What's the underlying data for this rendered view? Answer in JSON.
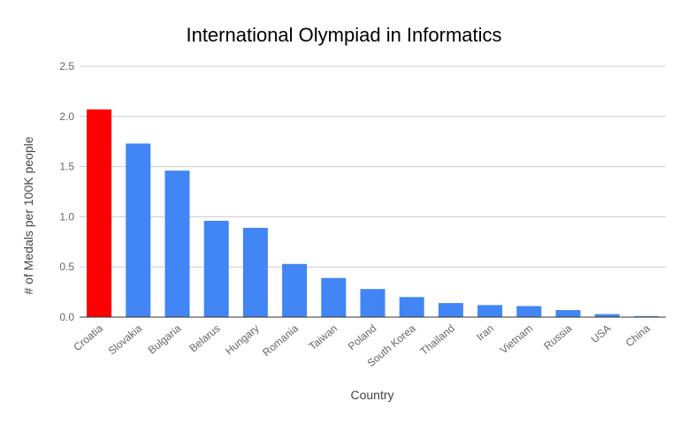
{
  "chart_data": {
    "type": "bar",
    "title": "International Olympiad in Informatics",
    "xlabel": "Country",
    "ylabel": "# of Medals per 100K people",
    "categories": [
      "Croatia",
      "Slovakia",
      "Bulgaria",
      "Belarus",
      "Hungary",
      "Romania",
      "Taiwan",
      "Poland",
      "South Korea",
      "Thailand",
      "Iran",
      "Vietnam",
      "Russia",
      "USA",
      "China"
    ],
    "values": [
      2.07,
      1.73,
      1.46,
      0.96,
      0.89,
      0.53,
      0.39,
      0.28,
      0.2,
      0.14,
      0.12,
      0.11,
      0.07,
      0.03,
      0.01
    ],
    "ylim": [
      0,
      2.5
    ],
    "yticks": [
      "0.0",
      "0.5",
      "1.0",
      "1.5",
      "2.0",
      "2.5"
    ],
    "grid": true,
    "legend": "none",
    "colors": {
      "default": "#4285f4",
      "highlight": "#ff0000",
      "highlight_category": "Croatia",
      "grid": "#cccccc",
      "axis": "#333333"
    }
  }
}
